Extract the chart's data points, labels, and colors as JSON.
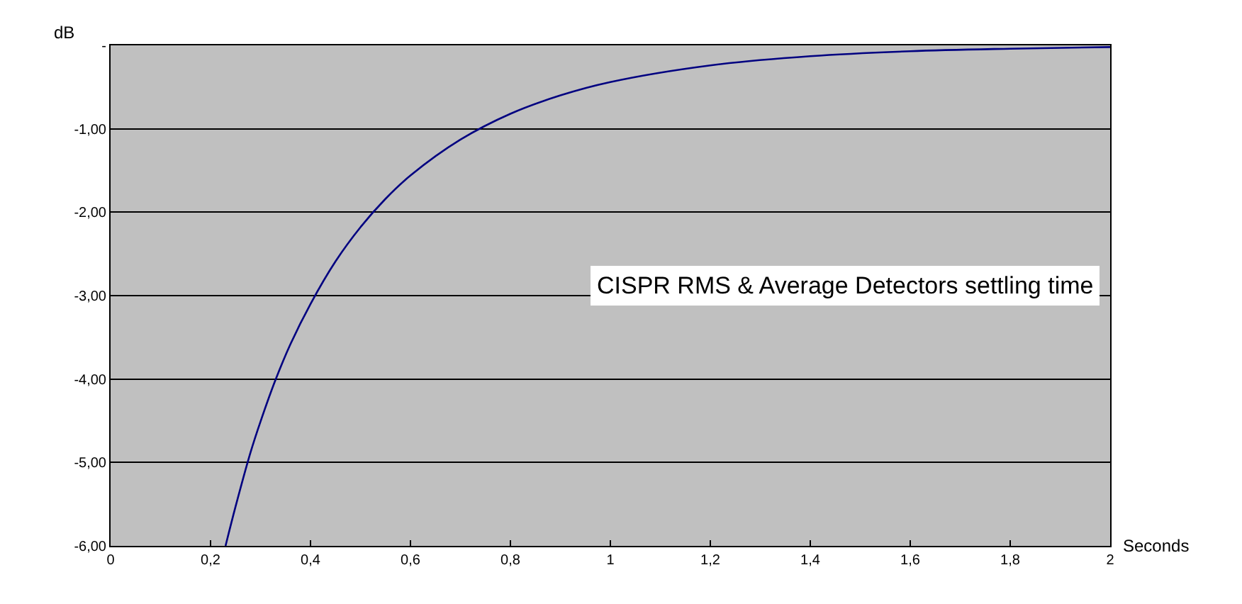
{
  "chart_data": {
    "type": "line",
    "xlabel": "Seconds",
    "ylabel": "dB",
    "x": [
      0.23,
      0.25,
      0.28,
      0.3,
      0.33,
      0.36,
      0.4,
      0.45,
      0.5,
      0.55,
      0.6,
      0.7,
      0.8,
      0.9,
      1.0,
      1.2,
      1.4,
      1.6,
      1.8,
      2.0
    ],
    "series": [
      {
        "color": "#000080",
        "values": [
          -6.0,
          -5.53,
          -4.88,
          -4.51,
          -4.01,
          -3.58,
          -3.1,
          -2.59,
          -2.18,
          -1.84,
          -1.56,
          -1.13,
          -0.82,
          -0.6,
          -0.44,
          -0.24,
          -0.13,
          -0.07,
          -0.04,
          -0.02
        ]
      }
    ],
    "xlim": [
      0,
      2
    ],
    "ylim": [
      -6,
      0
    ],
    "xticks": [
      0,
      {
        "value": 0.2,
        "label": "0,2"
      },
      {
        "value": 0.4,
        "label": "0,4"
      },
      {
        "value": 0.6,
        "label": "0,6"
      },
      {
        "value": 0.8,
        "label": "0,8"
      },
      1,
      {
        "value": 1.2,
        "label": "1,2"
      },
      {
        "value": 1.4,
        "label": "1,4"
      },
      {
        "value": 1.6,
        "label": "1,6"
      },
      {
        "value": 1.8,
        "label": "1,8"
      },
      2
    ],
    "yticks": [
      {
        "value": -6,
        "label": "-6,00"
      },
      {
        "value": -5,
        "label": "-5,00"
      },
      {
        "value": -4,
        "label": "-4,00"
      },
      {
        "value": -3,
        "label": "-3,00"
      },
      {
        "value": -2,
        "label": "-2,00"
      },
      {
        "value": -1,
        "label": "-1,00"
      },
      {
        "value": 0,
        "label": "-"
      }
    ],
    "grid": "y",
    "legend": false,
    "marker": "none",
    "line_style": "solid",
    "annotations": [
      "CISPR RMS & Average Detectors settling time"
    ]
  }
}
